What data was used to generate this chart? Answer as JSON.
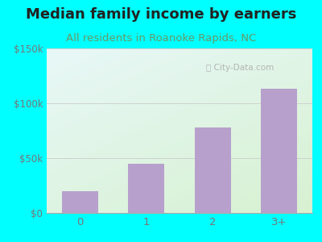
{
  "title": "Median family income by earners",
  "subtitle": "All residents in Roanoke Rapids, NC",
  "categories": [
    "0",
    "1",
    "2",
    "3+"
  ],
  "values": [
    20000,
    45000,
    78000,
    113000
  ],
  "bar_color": "#b8a0cc",
  "ylim": [
    0,
    150000
  ],
  "ytick_labels": [
    "$0",
    "$50k",
    "$100k",
    "$150k"
  ],
  "ytick_values": [
    0,
    50000,
    100000,
    150000
  ],
  "background_outer": "#00ffff",
  "grad_top_right": "#e8f8f8",
  "grad_bottom_left": "#d8eec8",
  "title_color": "#222222",
  "subtitle_color": "#669966",
  "watermark": "City-Data.com",
  "title_fontsize": 13,
  "subtitle_fontsize": 9.5,
  "tick_color": "#777777"
}
